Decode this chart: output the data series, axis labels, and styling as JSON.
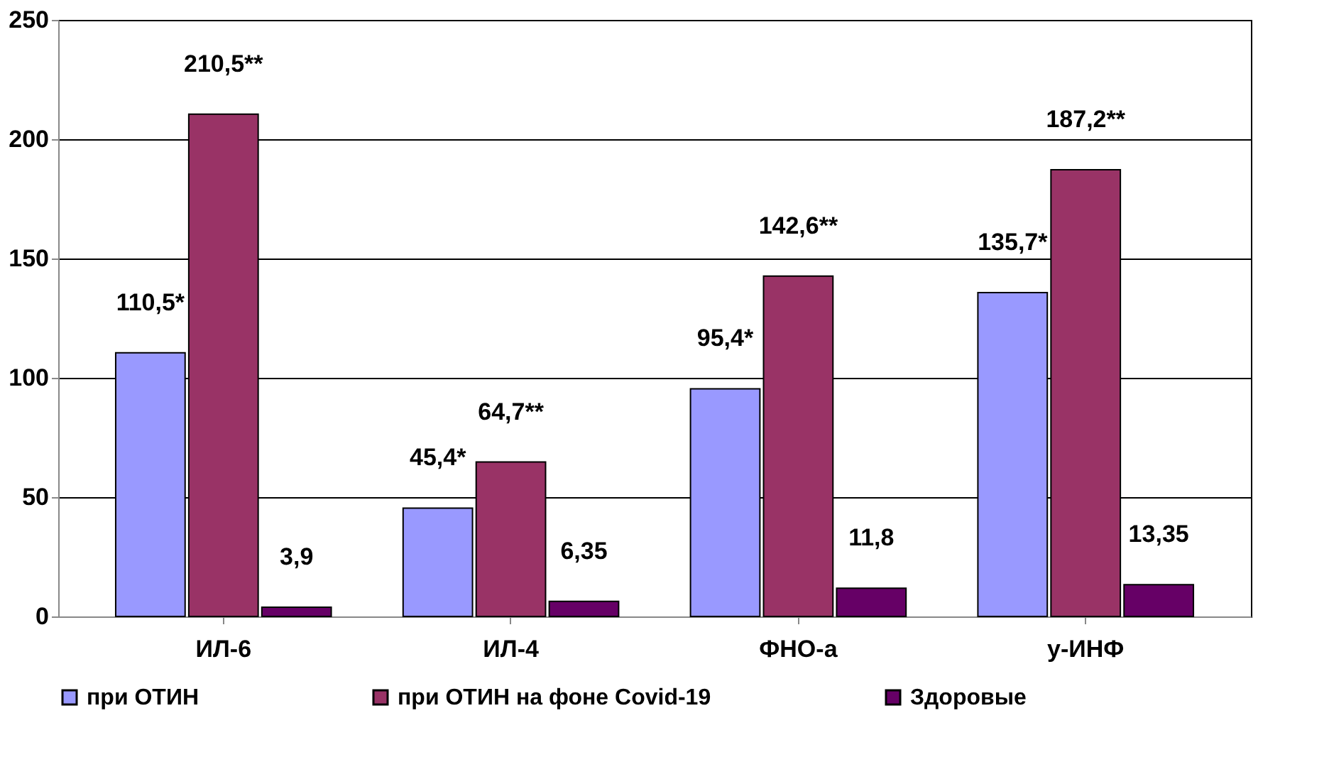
{
  "chart_data": {
    "type": "bar",
    "categories": [
      "ИЛ-6",
      "ИЛ-4",
      "ФНО-а",
      "у-ИНФ"
    ],
    "series": [
      {
        "name": "при ОТИН",
        "color": "#9999ff",
        "values": [
          110.5,
          45.4,
          95.4,
          135.7
        ],
        "value_labels": [
          "110,5*",
          "45,4*",
          "95,4*",
          "135,7*"
        ]
      },
      {
        "name": "при ОТИН на фоне Covid-19",
        "color": "#993366",
        "values": [
          210.5,
          64.7,
          142.6,
          187.2
        ],
        "value_labels": [
          "210,5**",
          "64,7**",
          "142,6**",
          "187,2**"
        ]
      },
      {
        "name": "Здоровые",
        "color": "#660066",
        "values": [
          3.9,
          6.35,
          11.8,
          13.35
        ],
        "value_labels": [
          "3,9",
          "6,35",
          "11,8",
          "13,35"
        ]
      }
    ],
    "ylim": [
      0,
      250
    ],
    "yticks": [
      0,
      50,
      100,
      150,
      200,
      250
    ],
    "grid": "y",
    "legend": "bottom"
  }
}
